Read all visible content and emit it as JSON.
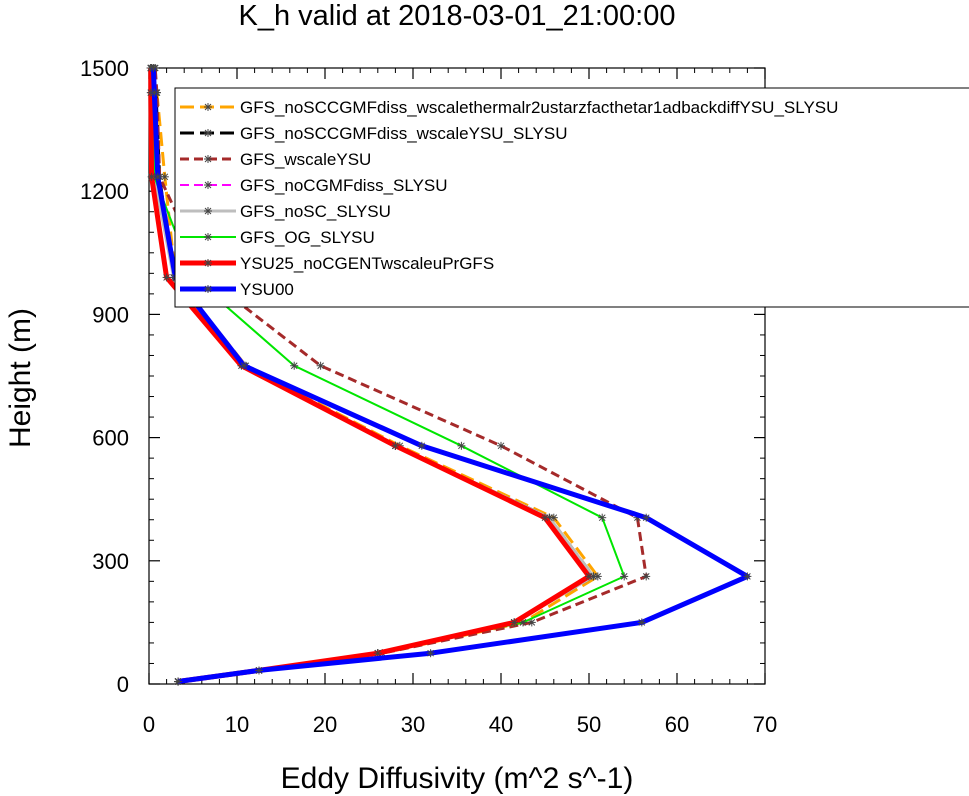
{
  "chart_data": {
    "type": "line",
    "title": "K_h valid at 2018-03-01_21:00:00",
    "xlabel": "Eddy Diffusivity (m^2 s^-1)",
    "ylabel": "Height (m)",
    "xlim": [
      0,
      70
    ],
    "ylim": [
      0,
      1500
    ],
    "x_ticks": [
      0,
      10,
      20,
      30,
      40,
      50,
      60,
      70
    ],
    "y_ticks": [
      0,
      300,
      600,
      900,
      1200,
      1500
    ],
    "x_tick_labels": [
      "0",
      "10",
      "20",
      "30",
      "40",
      "50",
      "60",
      "70"
    ],
    "y_tick_labels": [
      "0",
      "300",
      "600",
      "900",
      "1200",
      "1500"
    ],
    "legend_position": "top-right",
    "series": [
      {
        "name": "GFS_noSCCGMFdiss_wscalethermalr2ustarzfacthetar1adbackdiffYSU_SLYSU",
        "color": "#FFA500",
        "dash": "long-dash",
        "width": 3,
        "marker": "star",
        "x": [
          3.3,
          12.5,
          26.5,
          42.5,
          51,
          46,
          28.5,
          11,
          3,
          1.8,
          0.9,
          0.3
        ],
        "y": [
          6,
          33,
          75,
          150,
          262,
          405,
          580,
          775,
          990,
          1235,
          1440,
          1500
        ]
      },
      {
        "name": "GFS_noSCCGMFdiss_wscaleYSU_SLYSU",
        "color": "#000000",
        "dash": "long-dash",
        "width": 3,
        "marker": "star",
        "x": [
          3.3,
          12.5,
          26,
          41.5,
          50.5,
          45.5,
          28,
          10.8,
          2.8,
          1.2,
          0.8,
          0.7
        ],
        "y": [
          6,
          33,
          75,
          150,
          262,
          405,
          580,
          775,
          990,
          1235,
          1440,
          1500
        ]
      },
      {
        "name": "GFS_wscaleYSU",
        "color": "#A52A2A",
        "dash": "dash",
        "width": 3,
        "marker": "star",
        "x": [
          3.3,
          12.5,
          26.5,
          43.5,
          56.5,
          55.5,
          40,
          19.5,
          6.5,
          1.2,
          0.9,
          0.7
        ],
        "y": [
          6,
          33,
          75,
          150,
          262,
          405,
          580,
          775,
          990,
          1235,
          1440,
          1500
        ]
      },
      {
        "name": "GFS_noCGMFdiss_SLYSU",
        "color": "#FF00FF",
        "dash": "dash",
        "width": 2,
        "marker": "star",
        "x": [
          3.3,
          12.5,
          26,
          41.5,
          50.5,
          45.5,
          28,
          10.8,
          2.8,
          0.6,
          0.3,
          0.2
        ],
        "y": [
          6,
          33,
          75,
          150,
          262,
          405,
          580,
          775,
          990,
          1235,
          1440,
          1500
        ]
      },
      {
        "name": "GFS_noSC_SLYSU",
        "color": "#BEBEBE",
        "dash": "solid",
        "width": 3,
        "marker": "star",
        "x": [
          3.3,
          12.5,
          26,
          41.5,
          50.5,
          45.5,
          28,
          10.8,
          2.8,
          0.6,
          0.3,
          0.2
        ],
        "y": [
          6,
          33,
          75,
          150,
          262,
          405,
          580,
          775,
          990,
          1235,
          1440,
          1500
        ]
      },
      {
        "name": "GFS_OG_SLYSU",
        "color": "#00E600",
        "dash": "solid",
        "width": 2,
        "marker": "star",
        "x": [
          3.3,
          12.5,
          26,
          42.5,
          54,
          51.5,
          35.5,
          16.5,
          5,
          0.6,
          0.3,
          0.2
        ],
        "y": [
          6,
          33,
          75,
          150,
          262,
          405,
          580,
          775,
          990,
          1235,
          1440,
          1500
        ]
      },
      {
        "name": "YSU25_noCGENTwscaleuPrGFS",
        "color": "#FF0000",
        "dash": "solid",
        "width": 5,
        "marker": "star",
        "x": [
          3.3,
          12.5,
          26,
          41.5,
          50,
          45,
          28,
          10.5,
          2,
          0.3,
          0.2,
          0.2
        ],
        "y": [
          6,
          33,
          75,
          150,
          262,
          405,
          580,
          775,
          990,
          1235,
          1440,
          1500
        ]
      },
      {
        "name": "YSU00",
        "color": "#0000FF",
        "dash": "solid",
        "width": 5,
        "marker": "star",
        "x": [
          3.3,
          12.5,
          32,
          56,
          68,
          56.5,
          31,
          10.8,
          3,
          1,
          0.6,
          0.5
        ],
        "y": [
          6,
          33,
          75,
          150,
          262,
          405,
          580,
          775,
          990,
          1235,
          1440,
          1500
        ]
      }
    ]
  }
}
